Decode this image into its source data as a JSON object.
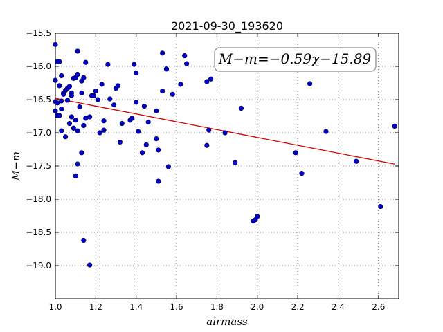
{
  "chart_data": {
    "type": "scatter",
    "title": "2021-09-30_193620",
    "xlabel": "airmass",
    "ylabel": "M−m",
    "xlim": [
      1.0,
      2.7
    ],
    "ylim": [
      -15.5,
      -19.5
    ],
    "y_inverted": true,
    "grid": true,
    "x_ticks": [
      1.0,
      1.2,
      1.4,
      1.6,
      1.8,
      2.0,
      2.2,
      2.4,
      2.6
    ],
    "x_tick_labels": [
      "1.0",
      "1.2",
      "1.4",
      "1.6",
      "1.8",
      "2.0",
      "2.2",
      "2.4",
      "2.6"
    ],
    "y_ticks": [
      -15.5,
      -16.0,
      -16.5,
      -17.0,
      -17.5,
      -18.0,
      -18.5,
      -19.0
    ],
    "y_tick_labels": [
      "−15.5",
      "−16.0",
      "−16.5",
      "−17.0",
      "−17.5",
      "−18.0",
      "−18.5",
      "−19.0"
    ],
    "marker_color": "#0000cc",
    "fit_color": "#cc0000",
    "annotation": "M−m=−0.59χ−15.89",
    "fit": {
      "slope": -0.59,
      "intercept": -15.89,
      "x_range": [
        1.0,
        2.68
      ]
    },
    "points": [
      [
        1.0,
        -15.67
      ],
      [
        1.0,
        -16.21
      ],
      [
        1.0,
        -16.53
      ],
      [
        1.0,
        -16.67
      ],
      [
        1.01,
        -16.74
      ],
      [
        1.01,
        -16.55
      ],
      [
        1.01,
        -15.93
      ],
      [
        1.02,
        -16.29
      ],
      [
        1.02,
        -16.74
      ],
      [
        1.02,
        -15.93
      ],
      [
        1.03,
        -16.14
      ],
      [
        1.03,
        -16.64
      ],
      [
        1.03,
        -16.97
      ],
      [
        1.03,
        -16.52
      ],
      [
        1.04,
        -16.4
      ],
      [
        1.04,
        -16.42
      ],
      [
        1.05,
        -16.36
      ],
      [
        1.05,
        -17.06
      ],
      [
        1.06,
        -16.51
      ],
      [
        1.06,
        -16.33
      ],
      [
        1.07,
        -16.86
      ],
      [
        1.07,
        -16.3
      ],
      [
        1.08,
        -16.76
      ],
      [
        1.08,
        -16.4
      ],
      [
        1.08,
        -16.44
      ],
      [
        1.09,
        -16.93
      ],
      [
        1.09,
        -16.18
      ],
      [
        1.1,
        -17.65
      ],
      [
        1.1,
        -16.81
      ],
      [
        1.1,
        -16.17
      ],
      [
        1.11,
        -16.97
      ],
      [
        1.11,
        -17.47
      ],
      [
        1.11,
        -16.12
      ],
      [
        1.11,
        -15.77
      ],
      [
        1.12,
        -16.61
      ],
      [
        1.13,
        -16.22
      ],
      [
        1.13,
        -17.3
      ],
      [
        1.13,
        -16.4
      ],
      [
        1.14,
        -16.89
      ],
      [
        1.14,
        -18.62
      ],
      [
        1.14,
        -16.17
      ],
      [
        1.15,
        -16.78
      ],
      [
        1.15,
        -15.94
      ],
      [
        1.17,
        -16.76
      ],
      [
        1.17,
        -18.99
      ],
      [
        1.18,
        -16.44
      ],
      [
        1.19,
        -16.44
      ],
      [
        1.2,
        -16.37
      ],
      [
        1.21,
        -16.5
      ],
      [
        1.22,
        -17.0
      ],
      [
        1.23,
        -16.27
      ],
      [
        1.24,
        -16.96
      ],
      [
        1.24,
        -16.82
      ],
      [
        1.26,
        -15.97
      ],
      [
        1.27,
        -16.49
      ],
      [
        1.29,
        -16.58
      ],
      [
        1.3,
        -16.33
      ],
      [
        1.31,
        -16.29
      ],
      [
        1.32,
        -17.14
      ],
      [
        1.33,
        -16.86
      ],
      [
        1.37,
        -16.81
      ],
      [
        1.38,
        -16.78
      ],
      [
        1.39,
        -15.97
      ],
      [
        1.4,
        -16.1
      ],
      [
        1.4,
        -16.54
      ],
      [
        1.41,
        -16.98
      ],
      [
        1.43,
        -17.3
      ],
      [
        1.44,
        -16.6
      ],
      [
        1.45,
        -17.18
      ],
      [
        1.46,
        -16.84
      ],
      [
        1.5,
        -17.09
      ],
      [
        1.5,
        -16.67
      ],
      [
        1.51,
        -17.26
      ],
      [
        1.51,
        -17.73
      ],
      [
        1.53,
        -16.37
      ],
      [
        1.53,
        -15.8
      ],
      [
        1.55,
        -16.04
      ],
      [
        1.56,
        -17.51
      ],
      [
        1.58,
        -16.42
      ],
      [
        1.62,
        -16.27
      ],
      [
        1.64,
        -15.84
      ],
      [
        1.65,
        -15.96
      ],
      [
        1.75,
        -16.23
      ],
      [
        1.75,
        -17.19
      ],
      [
        1.76,
        -16.96
      ],
      [
        1.77,
        -16.19
      ],
      [
        1.84,
        -17.0
      ],
      [
        1.89,
        -17.45
      ],
      [
        1.92,
        -16.63
      ],
      [
        1.98,
        -18.33
      ],
      [
        1.99,
        -18.31
      ],
      [
        2.0,
        -18.26
      ],
      [
        2.19,
        -17.3
      ],
      [
        2.22,
        -17.61
      ],
      [
        2.26,
        -16.26
      ],
      [
        2.34,
        -16.98
      ],
      [
        2.49,
        -17.43
      ],
      [
        2.61,
        -18.11
      ],
      [
        2.68,
        -16.9
      ]
    ]
  }
}
